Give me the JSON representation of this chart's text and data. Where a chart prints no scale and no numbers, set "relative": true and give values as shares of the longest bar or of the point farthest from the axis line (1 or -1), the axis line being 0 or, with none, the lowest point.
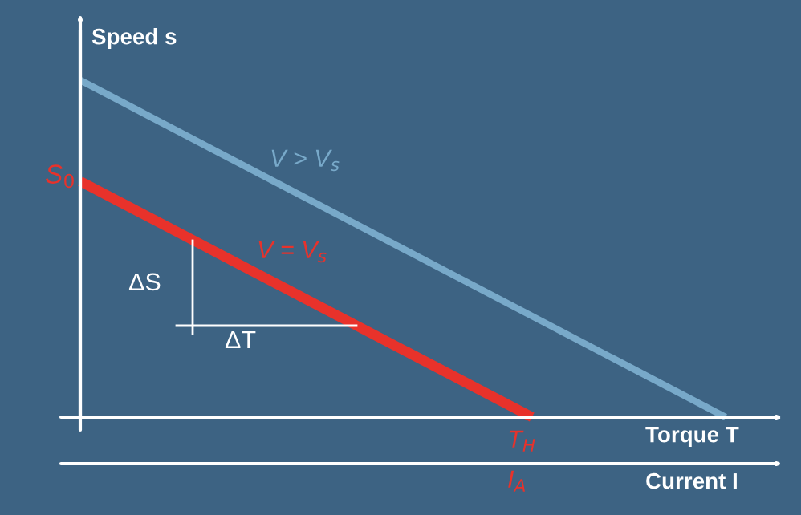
{
  "chart_data": {
    "type": "line",
    "relative": true,
    "xlabel": "Torque T",
    "ylabel": "Speed s",
    "categories": [
      null,
      null,
      null,
      null,
      null,
      null,
      null,
      null,
      null,
      null,
      null
    ],
    "series": [
      {
        "color": "#78a9c9",
        "values": [
          1,
          null,
          null,
          null,
          null,
          null,
          null,
          null,
          null,
          null,
          0
        ]
      },
      {
        "color": "#e8322b",
        "values": [
          0.7,
          null,
          null,
          null,
          null,
          null,
          null,
          0,
          null,
          null,
          null
        ]
      }
    ],
    "annotations": [
      "S$_{0}$",
      "V > V$_{s}$",
      "V = V$_{s}$",
      "ΔS",
      "ΔT",
      "T$_{H}$",
      "I$_{A}$",
      "Current I"
    ],
    "legend": false
  }
}
